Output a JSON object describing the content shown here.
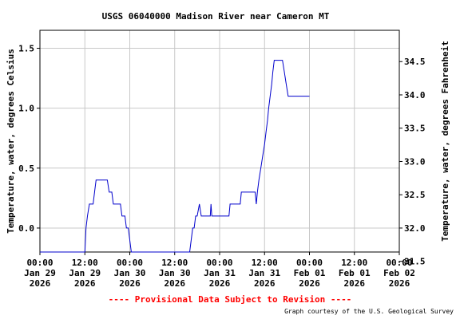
{
  "chart_data": {
    "type": "line",
    "title": "USGS 06040000 Madison River near Cameron MT",
    "ylabel_left": "Temperature, water, degrees Celsius",
    "ylabel_right": "Temperature, water, degrees Fahrenheit",
    "ylim_left": [
      -0.2,
      1.65
    ],
    "yticks_left": [
      "1.5",
      "1.0",
      "0.5",
      "0.0"
    ],
    "yticks_left_values": [
      1.5,
      1.0,
      0.5,
      0.0
    ],
    "yticks_right": [
      "34.5",
      "34.0",
      "33.5",
      "33.0",
      "32.5",
      "32.0",
      "31.5"
    ],
    "yticks_right_values": [
      34.5,
      34.0,
      33.5,
      33.0,
      32.5,
      32.0,
      31.5
    ],
    "xlim_hours": [
      0,
      96
    ],
    "xticks": [
      {
        "hour": 0,
        "lines": [
          "00:00",
          "Jan 29",
          "2026"
        ]
      },
      {
        "hour": 12,
        "lines": [
          "12:00",
          "Jan 29",
          "2026"
        ]
      },
      {
        "hour": 24,
        "lines": [
          "00:00",
          "Jan 30",
          "2026"
        ]
      },
      {
        "hour": 36,
        "lines": [
          "12:00",
          "Jan 30",
          "2026"
        ]
      },
      {
        "hour": 48,
        "lines": [
          "00:00",
          "Jan 31",
          "2026"
        ]
      },
      {
        "hour": 60,
        "lines": [
          "12:00",
          "Jan 31",
          "2026"
        ]
      },
      {
        "hour": 72,
        "lines": [
          "00:00",
          "Feb 01",
          "2026"
        ]
      },
      {
        "hour": 84,
        "lines": [
          "12:00",
          "Feb 01",
          "2026"
        ]
      },
      {
        "hour": 96,
        "lines": [
          "00:00",
          "Feb 02",
          "2026"
        ]
      }
    ],
    "grid": true,
    "series": [
      {
        "color": "#0000cc",
        "points": [
          [
            0,
            -0.2
          ],
          [
            12.0,
            -0.2
          ],
          [
            12.3,
            0.0
          ],
          [
            12.7,
            0.1
          ],
          [
            13.2,
            0.2
          ],
          [
            14.2,
            0.2
          ],
          [
            14.6,
            0.3
          ],
          [
            15.0,
            0.4
          ],
          [
            18.0,
            0.4
          ],
          [
            18.5,
            0.3
          ],
          [
            19.2,
            0.3
          ],
          [
            19.6,
            0.2
          ],
          [
            21.5,
            0.2
          ],
          [
            21.9,
            0.1
          ],
          [
            22.7,
            0.1
          ],
          [
            23.1,
            0.0
          ],
          [
            23.6,
            0.0
          ],
          [
            24.0,
            -0.1
          ],
          [
            24.4,
            -0.2
          ],
          [
            40.0,
            -0.2
          ],
          [
            40.4,
            -0.1
          ],
          [
            40.8,
            0.0
          ],
          [
            41.2,
            0.0
          ],
          [
            41.6,
            0.1
          ],
          [
            42.0,
            0.1
          ],
          [
            42.6,
            0.2
          ],
          [
            43.1,
            0.1
          ],
          [
            45.5,
            0.1
          ],
          [
            45.7,
            0.2
          ],
          [
            45.9,
            0.1
          ],
          [
            50.5,
            0.1
          ],
          [
            50.8,
            0.2
          ],
          [
            53.5,
            0.2
          ],
          [
            53.8,
            0.3
          ],
          [
            57.5,
            0.3
          ],
          [
            57.8,
            0.2
          ],
          [
            58.1,
            0.3
          ],
          [
            58.5,
            0.4
          ],
          [
            59.0,
            0.5
          ],
          [
            59.5,
            0.6
          ],
          [
            60.0,
            0.7
          ],
          [
            60.4,
            0.8
          ],
          [
            60.8,
            0.9
          ],
          [
            61.1,
            1.0
          ],
          [
            61.5,
            1.1
          ],
          [
            61.9,
            1.2
          ],
          [
            62.2,
            1.3
          ],
          [
            62.6,
            1.4
          ],
          [
            64.8,
            1.4
          ],
          [
            65.3,
            1.3
          ],
          [
            65.8,
            1.2
          ],
          [
            66.3,
            1.1
          ],
          [
            72.0,
            1.1
          ]
        ]
      }
    ]
  },
  "footer": {
    "provisional": "---- Provisional Data Subject to Revision ----",
    "credit": "Graph courtesy of the U.S. Geological Survey"
  }
}
